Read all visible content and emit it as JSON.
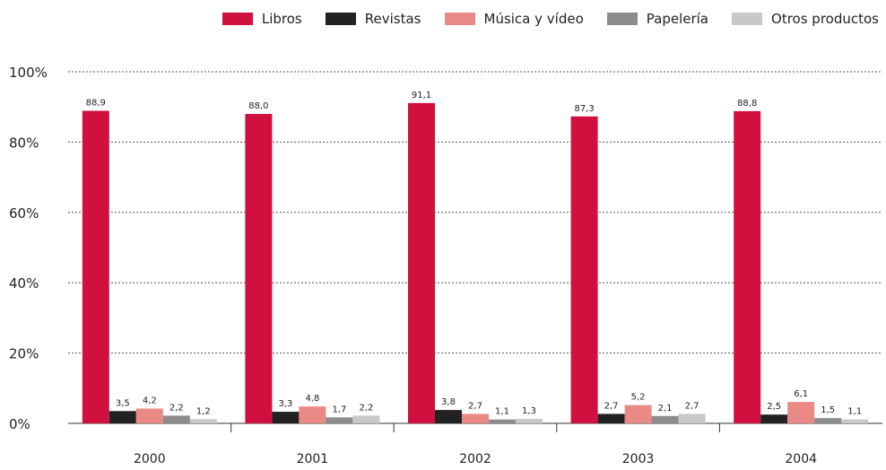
{
  "chart_data": {
    "type": "bar",
    "title": "",
    "xlabel": "",
    "ylabel": "",
    "ylim": [
      0,
      100
    ],
    "yticks": [
      0,
      20,
      40,
      60,
      80,
      100
    ],
    "ytick_labels": [
      "0%",
      "20%",
      "40%",
      "60%",
      "80%",
      "100%"
    ],
    "grid": "horizontal dotted",
    "legend_position": "top-right",
    "categories": [
      "2000",
      "2001",
      "2002",
      "2003",
      "2004"
    ],
    "series": [
      {
        "name": "Libros",
        "color": "#d0103f",
        "values": [
          88.9,
          88.0,
          91.1,
          87.3,
          88.8
        ],
        "labels": [
          "88,9",
          "88,0",
          "91,1",
          "87,3",
          "88,8"
        ]
      },
      {
        "name": "Revistas",
        "color": "#222222",
        "values": [
          3.5,
          3.3,
          3.8,
          2.7,
          2.5
        ],
        "labels": [
          "3,5",
          "3,3",
          "3,8",
          "2,7",
          "2,5"
        ]
      },
      {
        "name": "Música y vídeo",
        "color": "#e98a86",
        "values": [
          4.2,
          4.8,
          2.7,
          5.2,
          6.1
        ],
        "labels": [
          "4,2",
          "4,8",
          "2,7",
          "5,2",
          "6,1"
        ]
      },
      {
        "name": "Papelería",
        "color": "#8c8c8c",
        "values": [
          2.2,
          1.7,
          1.1,
          2.1,
          1.5
        ],
        "labels": [
          "2,2",
          "1,7",
          "1,1",
          "2,1",
          "1,5"
        ]
      },
      {
        "name": "Otros productos",
        "color": "#c8c8c8",
        "values": [
          1.2,
          2.2,
          1.3,
          2.7,
          1.1
        ],
        "labels": [
          "1,2",
          "2,2",
          "1,3",
          "2,7",
          "1,1"
        ]
      }
    ]
  }
}
